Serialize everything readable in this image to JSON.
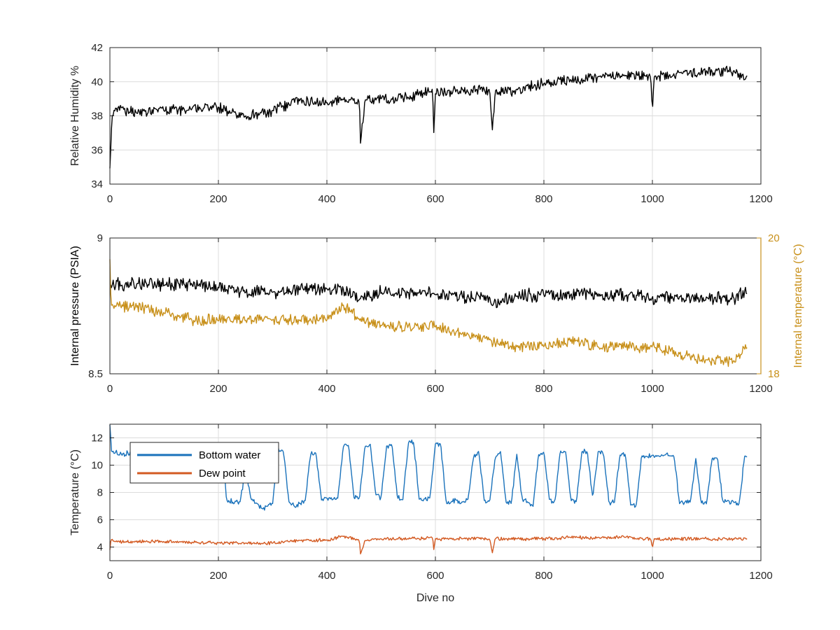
{
  "colors": {
    "black": "#000000",
    "gold": "#c8901a",
    "blue": "#1a72bb",
    "orange": "#d35a22"
  },
  "chart_data": [
    {
      "type": "line",
      "xlim": [
        0,
        1200
      ],
      "ylim": [
        34,
        42
      ],
      "xticks": [
        "0",
        "200",
        "400",
        "600",
        "800",
        "1000",
        "1200"
      ],
      "yticks": [
        "34",
        "36",
        "38",
        "40",
        "42"
      ],
      "xlabel": "",
      "ylabel": "Relative Humidity %",
      "grid": true,
      "series": [
        {
          "color": "#000000",
          "x": [
            0,
            4,
            10,
            50,
            100,
            150,
            200,
            250,
            300,
            350,
            400,
            430,
            460,
            462,
            470,
            500,
            550,
            595,
            597,
            600,
            650,
            700,
            705,
            710,
            750,
            800,
            850,
            900,
            950,
            997,
            1000,
            1003,
            1050,
            1100,
            1140,
            1175
          ],
          "y": [
            34.9,
            38.0,
            38.4,
            38.2,
            38.3,
            38.4,
            38.5,
            38.0,
            38.3,
            38.9,
            38.8,
            39.0,
            38.8,
            36.4,
            38.9,
            39.0,
            39.1,
            39.5,
            37.0,
            39.3,
            39.5,
            39.5,
            37.2,
            39.4,
            39.5,
            39.9,
            40.1,
            40.3,
            40.4,
            40.3,
            38.2,
            40.2,
            40.5,
            40.6,
            40.6,
            40.3
          ],
          "noise": 0.45
        }
      ]
    },
    {
      "type": "line",
      "xlim": [
        0,
        1200
      ],
      "ylim": [
        8.5,
        9
      ],
      "yticks": [
        "8.5",
        "9"
      ],
      "xticks": [
        "0",
        "200",
        "400",
        "600",
        "800",
        "1000",
        "1200"
      ],
      "xlabel": "",
      "ylabel": "Internal pressure (PSIA)",
      "y2lim": [
        18,
        20
      ],
      "y2ticks": [
        "18",
        "20"
      ],
      "y2label": "Internal temperature (°C)",
      "grid": true,
      "series": [
        {
          "color": "#000000",
          "axis": "left",
          "x": [
            0,
            50,
            100,
            150,
            200,
            215,
            250,
            300,
            350,
            400,
            450,
            460,
            500,
            550,
            595,
            600,
            650,
            700,
            705,
            750,
            800,
            850,
            900,
            950,
            1000,
            1050,
            1100,
            1150,
            1175
          ],
          "y": [
            8.83,
            8.83,
            8.83,
            8.83,
            8.82,
            8.81,
            8.8,
            8.8,
            8.81,
            8.81,
            8.8,
            8.77,
            8.8,
            8.8,
            8.8,
            8.79,
            8.78,
            8.78,
            8.75,
            8.79,
            8.79,
            8.79,
            8.79,
            8.79,
            8.78,
            8.78,
            8.78,
            8.78,
            8.8
          ],
          "noise": 0.035
        },
        {
          "color": "#c8901a",
          "axis": "right",
          "x": [
            0,
            2,
            10,
            50,
            100,
            150,
            200,
            250,
            300,
            350,
            400,
            430,
            460,
            500,
            550,
            600,
            650,
            700,
            750,
            800,
            850,
            900,
            950,
            1000,
            1050,
            1100,
            1150,
            1175
          ],
          "y": [
            19.7,
            19.0,
            19.0,
            19.0,
            18.9,
            18.8,
            18.8,
            18.8,
            18.8,
            18.8,
            18.8,
            19.0,
            18.8,
            18.7,
            18.7,
            18.7,
            18.6,
            18.5,
            18.4,
            18.4,
            18.5,
            18.4,
            18.4,
            18.4,
            18.3,
            18.2,
            18.2,
            18.4
          ],
          "noise": 0.12
        }
      ]
    },
    {
      "type": "line",
      "xlim": [
        0,
        1200
      ],
      "ylim": [
        3,
        13
      ],
      "xticks": [
        "0",
        "200",
        "400",
        "600",
        "800",
        "1000",
        "1200"
      ],
      "yticks": [
        "4",
        "6",
        "8",
        "10",
        "12"
      ],
      "xlabel": "Dive no",
      "ylabel": "Temperature (°C)",
      "grid": true,
      "legend": "top-left",
      "series": [
        {
          "name": "Bottom water",
          "color": "#1a72bb",
          "x": [
            0,
            3,
            8,
            200,
            210,
            215,
            240,
            250,
            260,
            270,
            280,
            290,
            300,
            310,
            320,
            330,
            340,
            350,
            360,
            370,
            380,
            390,
            400,
            410,
            420,
            430,
            440,
            450,
            460,
            470,
            480,
            490,
            500,
            510,
            520,
            530,
            540,
            550,
            560,
            570,
            580,
            590,
            600,
            610,
            620,
            630,
            640,
            650,
            660,
            670,
            680,
            690,
            700,
            710,
            720,
            730,
            740,
            750,
            760,
            770,
            780,
            790,
            800,
            810,
            820,
            830,
            840,
            850,
            860,
            870,
            880,
            890,
            900,
            910,
            920,
            930,
            940,
            950,
            960,
            970,
            980,
            990,
            1000,
            1010,
            1020,
            1030,
            1040,
            1050,
            1060,
            1070,
            1080,
            1090,
            1100,
            1110,
            1120,
            1130,
            1140,
            1150,
            1160,
            1170,
            1175
          ],
          "y": [
            13.0,
            11.0,
            10.9,
            10.6,
            10.6,
            7.4,
            7.3,
            9.8,
            7.5,
            7.2,
            6.8,
            7.0,
            7.2,
            11.3,
            11.0,
            7.3,
            7.0,
            7.2,
            7.4,
            10.8,
            10.9,
            7.5,
            7.6,
            7.5,
            7.6,
            11.3,
            11.5,
            7.6,
            7.5,
            11.4,
            11.5,
            7.8,
            7.6,
            11.4,
            11.5,
            7.6,
            7.5,
            11.6,
            11.7,
            7.5,
            7.5,
            7.6,
            11.6,
            11.5,
            7.2,
            7.3,
            7.4,
            7.3,
            7.5,
            10.6,
            11.0,
            7.4,
            7.3,
            10.5,
            11.0,
            7.3,
            7.2,
            10.8,
            7.5,
            7.3,
            7.0,
            10.8,
            11.0,
            7.5,
            7.3,
            11.0,
            11.0,
            7.4,
            7.3,
            11.0,
            11.0,
            7.6,
            11.0,
            10.8,
            7.2,
            7.3,
            10.7,
            10.8,
            7.1,
            7.0,
            10.7,
            10.6,
            10.7,
            10.7,
            10.7,
            10.7,
            10.6,
            7.2,
            7.3,
            7.3,
            10.5,
            7.2,
            7.2,
            10.5,
            10.5,
            7.3,
            7.4,
            7.3,
            7.2,
            10.7,
            10.6
          ],
          "noise": 0.3
        },
        {
          "name": "Dew point",
          "color": "#d35a22",
          "x": [
            0,
            2,
            8,
            100,
            200,
            250,
            300,
            350,
            400,
            430,
            460,
            462,
            470,
            500,
            550,
            595,
            597,
            600,
            650,
            700,
            705,
            710,
            750,
            800,
            850,
            900,
            950,
            997,
            1000,
            1003,
            1050,
            1100,
            1150,
            1175
          ],
          "y": [
            3.8,
            4.6,
            4.4,
            4.4,
            4.3,
            4.3,
            4.3,
            4.5,
            4.5,
            4.8,
            4.5,
            3.5,
            4.5,
            4.6,
            4.6,
            4.7,
            3.8,
            4.6,
            4.6,
            4.6,
            3.6,
            4.6,
            4.6,
            4.6,
            4.7,
            4.7,
            4.7,
            4.6,
            3.9,
            4.6,
            4.6,
            4.6,
            4.6,
            4.6
          ],
          "noise": 0.18
        }
      ]
    }
  ]
}
